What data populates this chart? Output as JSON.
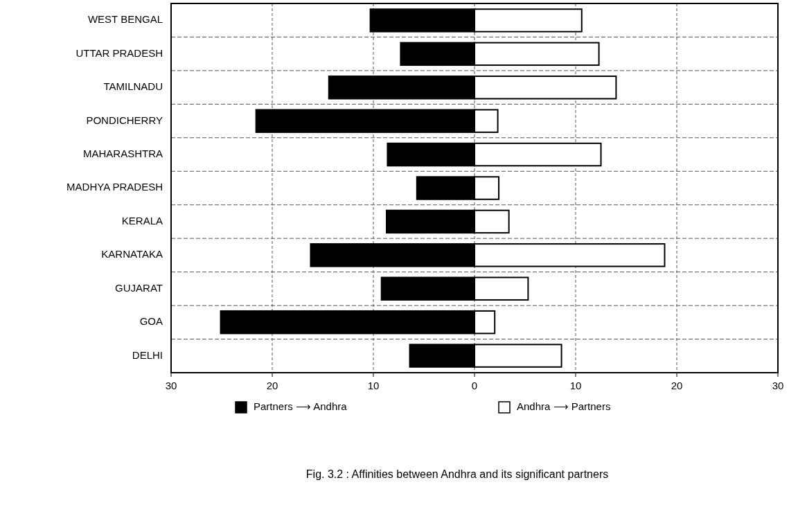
{
  "chart_data": {
    "type": "bar",
    "orientation": "horizontal",
    "stacked": true,
    "categories": [
      "WEST BENGAL",
      "UTTAR PRADESH",
      "TAMILNADU",
      "PONDICHERRY",
      "MAHARASHTRA",
      "MADHYA PRADESH",
      "KERALA",
      "KARNATAKA",
      "GUJARAT",
      "GOA",
      "DELHI"
    ],
    "series": [
      {
        "name": "Partners ⟶ Andhra",
        "color": "#000000",
        "values": [
          -10.3,
          -7.3,
          -14.4,
          -21.6,
          -8.6,
          -5.7,
          -8.7,
          -16.2,
          -9.2,
          -25.1,
          -6.4
        ]
      },
      {
        "name": "Andhra ⟶ Partners",
        "color": "#ffffff",
        "values": [
          10.6,
          12.3,
          14.0,
          2.3,
          12.5,
          2.4,
          3.4,
          18.8,
          5.3,
          2.0,
          8.6
        ]
      }
    ],
    "xlim": [
      -30,
      30
    ],
    "xticks": [
      {
        "value": -30,
        "label": "30"
      },
      {
        "value": -20,
        "label": "20"
      },
      {
        "value": -10,
        "label": "10"
      },
      0,
      10,
      20,
      30
    ],
    "grid": true,
    "legend": "bottom",
    "annotations": [
      "Fig. 3.2 : Affinities between Andhra and its significant partners"
    ]
  }
}
